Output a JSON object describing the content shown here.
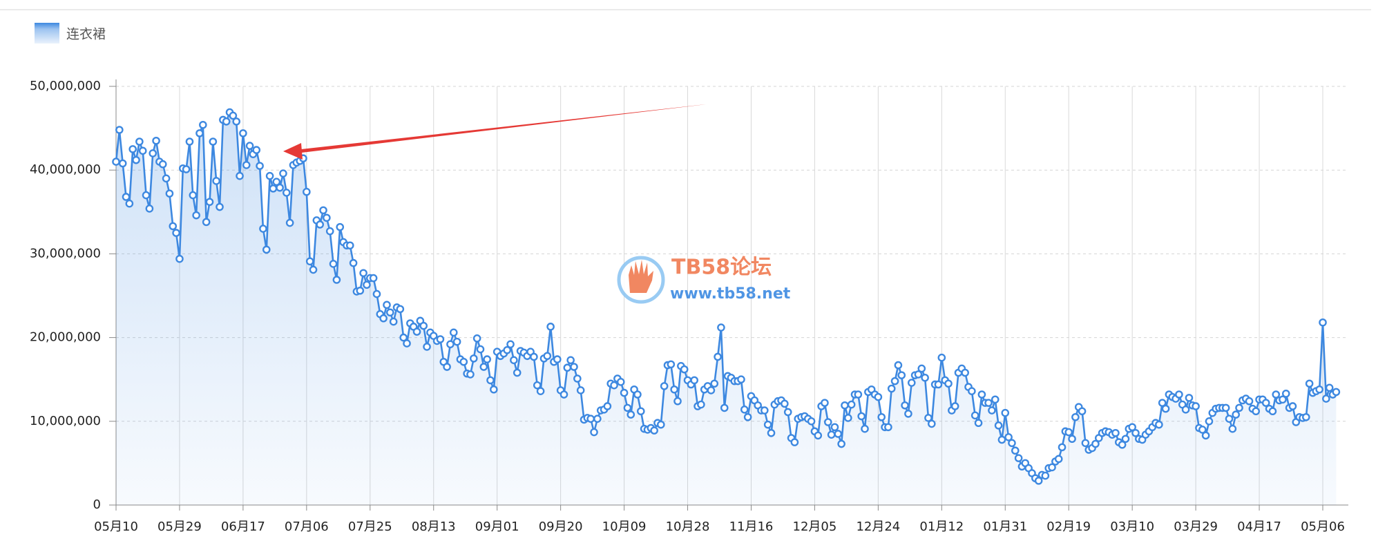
{
  "chart_data": {
    "type": "line",
    "categories": [
      "05月10",
      null,
      null,
      null,
      null,
      null,
      null,
      null,
      null,
      null,
      null,
      null,
      null,
      null,
      null,
      null,
      null,
      null,
      null,
      "05月29",
      null,
      null,
      null,
      null,
      null,
      null,
      null,
      null,
      null,
      null,
      null,
      null,
      null,
      null,
      null,
      null,
      null,
      null,
      "06月17",
      null,
      null,
      null,
      null,
      null,
      null,
      null,
      null,
      null,
      null,
      null,
      null,
      null,
      null,
      null,
      null,
      null,
      null,
      "07月06",
      null,
      null,
      null,
      null,
      null,
      null,
      null,
      null,
      null,
      null,
      null,
      null,
      null,
      null,
      null,
      null,
      null,
      null,
      "07月25",
      null,
      null,
      null,
      null,
      null,
      null,
      null,
      null,
      null,
      null,
      null,
      null,
      null,
      null,
      null,
      null,
      null,
      null,
      "08月13",
      null,
      null,
      null,
      null,
      null,
      null,
      null,
      null,
      null,
      null,
      null,
      null,
      null,
      null,
      null,
      null,
      null,
      null,
      "09月01",
      null,
      null,
      null,
      null,
      null,
      null,
      null,
      null,
      null,
      null,
      null,
      null,
      null,
      null,
      null,
      null,
      null,
      null,
      "09月20",
      null,
      null,
      null,
      null,
      null,
      null,
      null,
      null,
      null,
      null,
      null,
      null,
      null,
      null,
      null,
      null,
      null,
      null,
      "10月09",
      null,
      null,
      null,
      null,
      null,
      null,
      null,
      null,
      null,
      null,
      null,
      null,
      null,
      null,
      null,
      null,
      null,
      null,
      "10月28",
      null,
      null,
      null,
      null,
      null,
      null,
      null,
      null,
      null,
      null,
      null,
      null,
      null,
      null,
      null,
      null,
      null,
      null,
      "11月16",
      null,
      null,
      null,
      null,
      null,
      null,
      null,
      null,
      null,
      null,
      null,
      null,
      null,
      null,
      null,
      null,
      null,
      null,
      "12月05",
      null,
      null,
      null,
      null,
      null,
      null,
      null,
      null,
      null,
      null,
      null,
      null,
      null,
      null,
      null,
      null,
      null,
      null,
      "12月24",
      null,
      null,
      null,
      null,
      null,
      null,
      null,
      null,
      null,
      null,
      null,
      null,
      null,
      null,
      null,
      null,
      null,
      null,
      "01月12",
      null,
      null,
      null,
      null,
      null,
      null,
      null,
      null,
      null,
      null,
      null,
      null,
      null,
      null,
      null,
      null,
      null,
      null,
      "01月31",
      null,
      null,
      null,
      null,
      null,
      null,
      null,
      null,
      null,
      null,
      null,
      null,
      null,
      null,
      null,
      null,
      null,
      null,
      "02月19",
      null,
      null,
      null,
      null,
      null,
      null,
      null,
      null,
      null,
      null,
      null,
      null,
      null,
      null,
      null,
      null,
      null,
      null,
      "03月10",
      null,
      null,
      null,
      null,
      null,
      null,
      null,
      null,
      null,
      null,
      null,
      null,
      null,
      null,
      null,
      null,
      null,
      null,
      "03月29",
      null,
      null,
      null,
      null,
      null,
      null,
      null,
      null,
      null,
      null,
      null,
      null,
      null,
      null,
      null,
      null,
      null,
      null,
      "04月17",
      null,
      null,
      null,
      null,
      null,
      null,
      null,
      null,
      null,
      null,
      null,
      null,
      null,
      null,
      null,
      null,
      null,
      null,
      "05月06",
      null,
      null,
      null,
      null
    ],
    "series": [
      {
        "name": "连衣裙",
        "color": "#3d88e0",
        "values": [
          41000000,
          44800000,
          40800000,
          36800000,
          36000000,
          42500000,
          41200000,
          43400000,
          42300000,
          37000000,
          35400000,
          42000000,
          43500000,
          41000000,
          40700000,
          39000000,
          37200000,
          33300000,
          32500000,
          29400000,
          40200000,
          40100000,
          43400000,
          37000000,
          34600000,
          44400000,
          45400000,
          33800000,
          36200000,
          43400000,
          38700000,
          35600000,
          46000000,
          45800000,
          46900000,
          46500000,
          45800000,
          39300000,
          44400000,
          40600000,
          42900000,
          41900000,
          42400000,
          40500000,
          33000000,
          30500000,
          39300000,
          37800000,
          38600000,
          37900000,
          39600000,
          37300000,
          33700000,
          40600000,
          40900000,
          41100000,
          41400000,
          37400000,
          29100000,
          28100000,
          34000000,
          33500000,
          35200000,
          34300000,
          32700000,
          28800000,
          26900000,
          33200000,
          31400000,
          31000000,
          31000000,
          28900000,
          25500000,
          25600000,
          27700000,
          26300000,
          27100000,
          27100000,
          25200000,
          22800000,
          22300000,
          23900000,
          23000000,
          21900000,
          23600000,
          23400000,
          20000000,
          19300000,
          21700000,
          21300000,
          20700000,
          22000000,
          21400000,
          18900000,
          20600000,
          20200000,
          19600000,
          19800000,
          17100000,
          16500000,
          19200000,
          20600000,
          19500000,
          17400000,
          17100000,
          15700000,
          15600000,
          17500000,
          19900000,
          18600000,
          16500000,
          17400000,
          14900000,
          13800000,
          18300000,
          17800000,
          18100000,
          18500000,
          19200000,
          17300000,
          15800000,
          18400000,
          18200000,
          17800000,
          18300000,
          17700000,
          14300000,
          13600000,
          17500000,
          17800000,
          21300000,
          17100000,
          17400000,
          13700000,
          13200000,
          16400000,
          17300000,
          16500000,
          15100000,
          13700000,
          10200000,
          10400000,
          10300000,
          8700000,
          10300000,
          11300000,
          11400000,
          11800000,
          14500000,
          14300000,
          15100000,
          14700000,
          13400000,
          11600000,
          10800000,
          13800000,
          13200000,
          11200000,
          9100000,
          9000000,
          9200000,
          8900000,
          9800000,
          9600000,
          14200000,
          16700000,
          16800000,
          13800000,
          12400000,
          16600000,
          16200000,
          14900000,
          14400000,
          14900000,
          11800000,
          12000000,
          13800000,
          14200000,
          13700000,
          14500000,
          17700000,
          21200000,
          11600000,
          15400000,
          15200000,
          14800000,
          14800000,
          15000000,
          11400000,
          10500000,
          13000000,
          12500000,
          11900000,
          11300000,
          11300000,
          9600000,
          8600000,
          12000000,
          12400000,
          12500000,
          12100000,
          11100000,
          8000000,
          7500000,
          10300000,
          10500000,
          10600000,
          10300000,
          10000000,
          8800000,
          8300000,
          11800000,
          12200000,
          9900000,
          8400000,
          9300000,
          8500000,
          7300000,
          11900000,
          10400000,
          12000000,
          13200000,
          13200000,
          10600000,
          9100000,
          13500000,
          13800000,
          13200000,
          12900000,
          10500000,
          9300000,
          9300000,
          13900000,
          14800000,
          16700000,
          15500000,
          11900000,
          10900000,
          14600000,
          15500000,
          15600000,
          16300000,
          15200000,
          10400000,
          9700000,
          14400000,
          14400000,
          17600000,
          14900000,
          14500000,
          11300000,
          11800000,
          15800000,
          16300000,
          15800000,
          14100000,
          13600000,
          10700000,
          9800000,
          13200000,
          12200000,
          12200000,
          11300000,
          12600000,
          9500000,
          7800000,
          11000000,
          8100000,
          7400000,
          6500000,
          5600000,
          4600000,
          5000000,
          4400000,
          3800000,
          3200000,
          2900000,
          3600000,
          3500000,
          4400000,
          4500000,
          5200000,
          5500000,
          6900000,
          8800000,
          8700000,
          7900000,
          10500000,
          11700000,
          11200000,
          7400000,
          6600000,
          6800000,
          7300000,
          8000000,
          8600000,
          8800000,
          8700000,
          8400000,
          8600000,
          7500000,
          7200000,
          7900000,
          9100000,
          9300000,
          8600000,
          7900000,
          7800000,
          8400000,
          8800000,
          9300000,
          9800000,
          9600000,
          12200000,
          11500000,
          13200000,
          12900000,
          12700000,
          13200000,
          12000000,
          11400000,
          12800000,
          11900000,
          11800000,
          9200000,
          9000000,
          8300000,
          10000000,
          11000000,
          11500000,
          11600000,
          11600000,
          11600000,
          10300000,
          9100000,
          10800000,
          11600000,
          12500000,
          12700000,
          12400000,
          11500000,
          11200000,
          12600000,
          12600000,
          12200000,
          11500000,
          11200000,
          13200000,
          12500000,
          12600000,
          13300000,
          11600000,
          11800000,
          9900000,
          10500000,
          10400000,
          10500000,
          14500000,
          13400000,
          13600000,
          13800000,
          21800000,
          12700000,
          14000000,
          13200000,
          13500000
        ]
      }
    ],
    "ylim": [
      0,
      50000000
    ],
    "yticks": [
      0,
      {
        "value": 10000000,
        "label": "10,000,000"
      },
      {
        "value": 20000000,
        "label": "20,000,000"
      },
      {
        "value": 30000000,
        "label": "30,000,000"
      },
      {
        "value": 40000000,
        "label": "40,000,000"
      },
      {
        "value": 50000000,
        "label": "50,000,000"
      }
    ],
    "grid": true,
    "legend": "top-left"
  },
  "watermark": {
    "title": "TB58论坛",
    "url": "www.tb58.net"
  }
}
